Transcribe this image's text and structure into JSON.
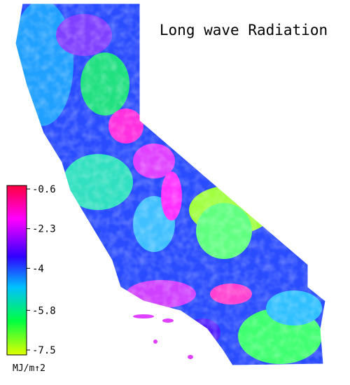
{
  "title": "Long wave Radiation",
  "legend": {
    "range": [
      -7.5,
      -0.6
    ],
    "ticks": [
      -0.6,
      -2.3,
      -4.0,
      -5.8,
      -7.5
    ],
    "unit": "MJ/m↑2"
  }
}
